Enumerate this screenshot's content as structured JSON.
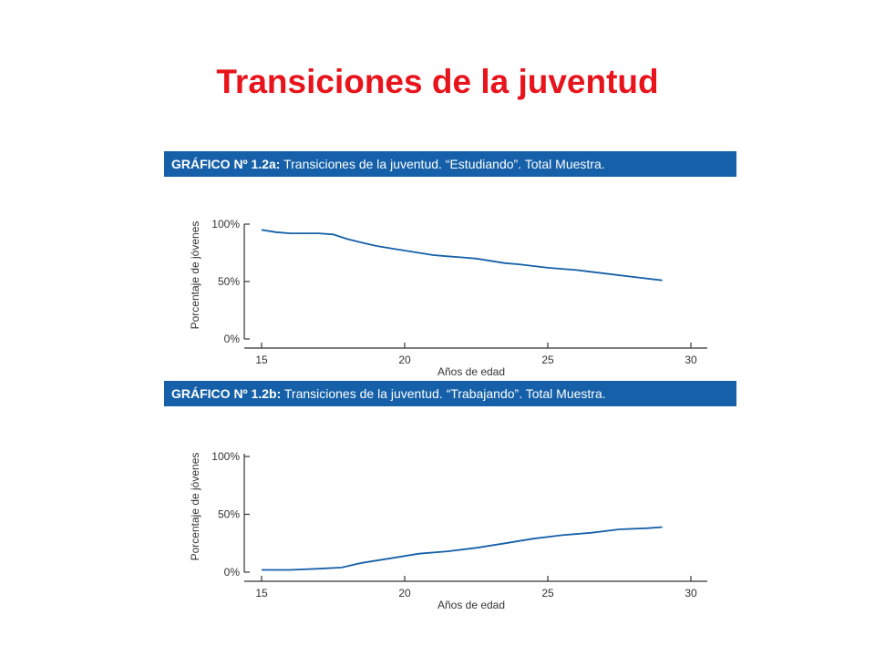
{
  "slide": {
    "title": "Transiciones de la juventud"
  },
  "colors": {
    "title": "#e8141c",
    "header_bg": "#1560a8",
    "header_text": "#ffffff",
    "line": "#1560a8",
    "axis": "#333333",
    "tick_label": "#333333"
  },
  "chart_data": [
    {
      "type": "line",
      "header_bold": "GRÁFICO Nº 1.2a:",
      "header_text": " Transiciones de la juventud. “Estudiando”. Total Muestra.",
      "xlabel": "Años de edad",
      "ylabel": "Porcentaje de jóvenes",
      "xticks": [
        "15",
        "20",
        "25",
        "30"
      ],
      "yticks": [
        "100%",
        "50%",
        "0%"
      ],
      "xlim": [
        15,
        30
      ],
      "ylim": [
        0,
        100
      ],
      "grid": false,
      "series": [
        {
          "x": [
            15,
            15.5,
            16,
            16.5,
            17,
            17.5,
            18,
            18.5,
            19,
            19.5,
            20,
            20.5,
            21,
            21.5,
            22,
            22.5,
            23,
            23.5,
            24,
            25,
            26,
            27,
            28,
            29
          ],
          "values": [
            95,
            93,
            92,
            92,
            92,
            91,
            87,
            84,
            81,
            79,
            77,
            75,
            73,
            72,
            71,
            70,
            68,
            66,
            65,
            62,
            60,
            57,
            54,
            51
          ]
        }
      ]
    },
    {
      "type": "line",
      "header_bold": "GRÁFICO Nº 1.2b:",
      "header_text": " Transiciones de la juventud. “Trabajando”. Total Muestra.",
      "xlabel": "Años de edad",
      "ylabel": "Porcentaje de jóvenes",
      "xticks": [
        "15",
        "20",
        "25",
        "30"
      ],
      "yticks": [
        "100%",
        "50%",
        "0%"
      ],
      "xlim": [
        15,
        30
      ],
      "ylim": [
        0,
        100
      ],
      "grid": false,
      "series": [
        {
          "x": [
            15,
            16,
            17,
            17.8,
            18.5,
            19.5,
            20.5,
            21.5,
            22.5,
            23.5,
            24.5,
            25.5,
            26.5,
            27.5,
            28.5,
            29
          ],
          "values": [
            2,
            2,
            3,
            4,
            8,
            12,
            16,
            18,
            21,
            25,
            29,
            32,
            34,
            37,
            38,
            39
          ]
        }
      ]
    }
  ]
}
